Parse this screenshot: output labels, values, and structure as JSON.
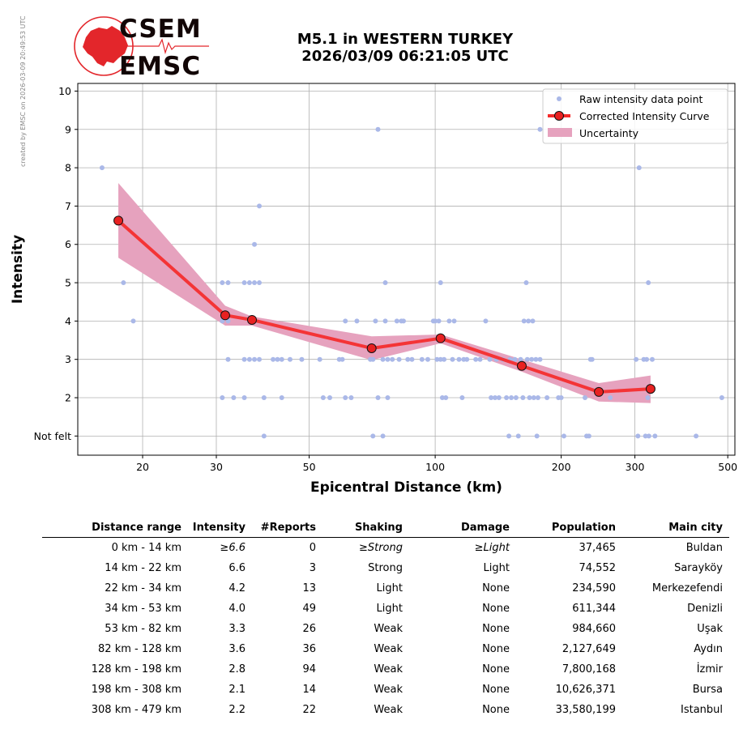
{
  "side_note": "created by EMSC on 2026-03-09 20:49:53 UTC",
  "logo": {
    "line1": "CSEM",
    "line2": "EMSC",
    "color": "#e3262b"
  },
  "title": {
    "line1": "M5.1 in WESTERN TURKEY",
    "line2": "2026/03/09 06:21:05 UTC"
  },
  "chart_data": {
    "type": "scatter",
    "xlabel": "Epicentral Distance (km)",
    "ylabel": "Intensity",
    "xscale": "log",
    "xlim": [
      14,
      520
    ],
    "ylim": [
      0.5,
      10.2
    ],
    "xticks": [
      20,
      30,
      50,
      100,
      200,
      300,
      500
    ],
    "yticks": [
      1,
      2,
      3,
      4,
      5,
      6,
      7,
      8,
      9,
      10
    ],
    "ytick_labels": [
      "Not felt",
      "2",
      "3",
      "4",
      "5",
      "6",
      "7",
      "8",
      "9",
      "10"
    ],
    "grid": true,
    "legend_position": "top-right",
    "legend": {
      "raw": "Raw intensity data point",
      "curve": "Corrected Intensity Curve",
      "uncertainty": "Uncertainty"
    },
    "colors": {
      "raw": "#aab8e8",
      "curve": "#f52a2a",
      "marker": "#e82121",
      "band": "#e6a2be"
    },
    "raw_points": [
      [
        16,
        8
      ],
      [
        18,
        5
      ],
      [
        19,
        4
      ],
      [
        31,
        5
      ],
      [
        32,
        5
      ],
      [
        31,
        4
      ],
      [
        32,
        4
      ],
      [
        32,
        3
      ],
      [
        31,
        2
      ],
      [
        33,
        2
      ],
      [
        35,
        5
      ],
      [
        36,
        5
      ],
      [
        37,
        5
      ],
      [
        38,
        5
      ],
      [
        38,
        7
      ],
      [
        37,
        6
      ],
      [
        35,
        3
      ],
      [
        36,
        3
      ],
      [
        37,
        3
      ],
      [
        38,
        3
      ],
      [
        35,
        2
      ],
      [
        39,
        1
      ],
      [
        39,
        2
      ],
      [
        41,
        3
      ],
      [
        42,
        3
      ],
      [
        43,
        3
      ],
      [
        43,
        2
      ],
      [
        45,
        3
      ],
      [
        48,
        3
      ],
      [
        53,
        3
      ],
      [
        54,
        2
      ],
      [
        56,
        2
      ],
      [
        59,
        3
      ],
      [
        60,
        3
      ],
      [
        61,
        4
      ],
      [
        61,
        2
      ],
      [
        63,
        2
      ],
      [
        65,
        4
      ],
      [
        70,
        3
      ],
      [
        71,
        3
      ],
      [
        71,
        1
      ],
      [
        72,
        4
      ],
      [
        73,
        9
      ],
      [
        73,
        2
      ],
      [
        75,
        3
      ],
      [
        75,
        1
      ],
      [
        76,
        5
      ],
      [
        76,
        4
      ],
      [
        77,
        3
      ],
      [
        77,
        2
      ],
      [
        79,
        3
      ],
      [
        81,
        4
      ],
      [
        82,
        3
      ],
      [
        83,
        4
      ],
      [
        84,
        4
      ],
      [
        86,
        3
      ],
      [
        88,
        3
      ],
      [
        93,
        3
      ],
      [
        96,
        3
      ],
      [
        99,
        4
      ],
      [
        100,
        4
      ],
      [
        101,
        3
      ],
      [
        102,
        4
      ],
      [
        103,
        3
      ],
      [
        103,
        5
      ],
      [
        104,
        2
      ],
      [
        105,
        3
      ],
      [
        106,
        2
      ],
      [
        108,
        4
      ],
      [
        110,
        3
      ],
      [
        111,
        4
      ],
      [
        114,
        3
      ],
      [
        116,
        2
      ],
      [
        117,
        3
      ],
      [
        119,
        3
      ],
      [
        125,
        3
      ],
      [
        128,
        3
      ],
      [
        132,
        4
      ],
      [
        135,
        3
      ],
      [
        136,
        2
      ],
      [
        139,
        2
      ],
      [
        140,
        3
      ],
      [
        142,
        2
      ],
      [
        145,
        3
      ],
      [
        148,
        2
      ],
      [
        150,
        1
      ],
      [
        151,
        3
      ],
      [
        152,
        2
      ],
      [
        155,
        3
      ],
      [
        156,
        2
      ],
      [
        158,
        1
      ],
      [
        160,
        3
      ],
      [
        162,
        2
      ],
      [
        163,
        4
      ],
      [
        165,
        5
      ],
      [
        166,
        3
      ],
      [
        167,
        4
      ],
      [
        168,
        2
      ],
      [
        170,
        3
      ],
      [
        171,
        4
      ],
      [
        172,
        2
      ],
      [
        174,
        3
      ],
      [
        175,
        1
      ],
      [
        176,
        2
      ],
      [
        178,
        3
      ],
      [
        178,
        9
      ],
      [
        185,
        2
      ],
      [
        197,
        2
      ],
      [
        200,
        2
      ],
      [
        203,
        1
      ],
      [
        228,
        2
      ],
      [
        230,
        1
      ],
      [
        233,
        1
      ],
      [
        235,
        3
      ],
      [
        237,
        3
      ],
      [
        262,
        2
      ],
      [
        302,
        3
      ],
      [
        305,
        1
      ],
      [
        307,
        8
      ],
      [
        315,
        3
      ],
      [
        318,
        1
      ],
      [
        320,
        3
      ],
      [
        322,
        2
      ],
      [
        323,
        5
      ],
      [
        324,
        1
      ],
      [
        330,
        3
      ],
      [
        335,
        1
      ],
      [
        420,
        1
      ],
      [
        484,
        2
      ]
    ],
    "corrected_curve": {
      "x": [
        17.5,
        31.5,
        36.5,
        70.5,
        103,
        161,
        246,
        327
      ],
      "y": [
        6.62,
        4.15,
        4.03,
        3.29,
        3.55,
        2.83,
        2.15,
        2.23
      ],
      "upper": [
        7.6,
        4.4,
        4.12,
        3.6,
        3.65,
        3.0,
        2.38,
        2.58
      ],
      "lower": [
        5.65,
        3.88,
        3.88,
        2.98,
        3.42,
        2.68,
        1.9,
        1.86
      ]
    }
  },
  "table": {
    "headers": [
      "Distance range",
      "Intensity",
      "#Reports",
      "Shaking",
      "Damage",
      "Population",
      "Main city"
    ],
    "rows": [
      {
        "range": "0 km -   14 km",
        "intensity": "≥6.6",
        "reports": "0",
        "shaking": "≥Strong",
        "damage": "≥Light",
        "population": "37,465",
        "city": "Buldan"
      },
      {
        "range": "14 km -   22 km",
        "intensity": "6.6",
        "reports": "3",
        "shaking": "Strong",
        "damage": "Light",
        "population": "74,552",
        "city": "Sarayköy"
      },
      {
        "range": "22 km -   34 km",
        "intensity": "4.2",
        "reports": "13",
        "shaking": "Light",
        "damage": "None",
        "population": "234,590",
        "city": "Merkezefendi"
      },
      {
        "range": "34 km -   53 km",
        "intensity": "4.0",
        "reports": "49",
        "shaking": "Light",
        "damage": "None",
        "population": "611,344",
        "city": "Denizli"
      },
      {
        "range": "53 km -   82 km",
        "intensity": "3.3",
        "reports": "26",
        "shaking": "Weak",
        "damage": "None",
        "population": "984,660",
        "city": "Uşak"
      },
      {
        "range": "82 km -  128 km",
        "intensity": "3.6",
        "reports": "36",
        "shaking": "Weak",
        "damage": "None",
        "population": "2,127,649",
        "city": "Aydın"
      },
      {
        "range": "128 km -  198 km",
        "intensity": "2.8",
        "reports": "94",
        "shaking": "Weak",
        "damage": "None",
        "population": "7,800,168",
        "city": "İzmir"
      },
      {
        "range": "198 km -  308 km",
        "intensity": "2.1",
        "reports": "14",
        "shaking": "Weak",
        "damage": "None",
        "population": "10,626,371",
        "city": "Bursa"
      },
      {
        "range": "308 km -  479 km",
        "intensity": "2.2",
        "reports": "22",
        "shaking": "Weak",
        "damage": "None",
        "population": "33,580,199",
        "city": "Istanbul"
      }
    ]
  }
}
